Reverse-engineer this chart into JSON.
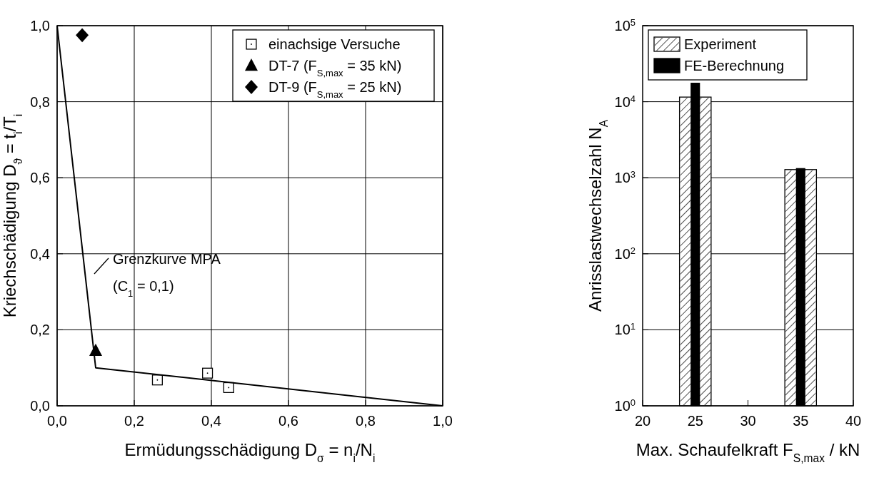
{
  "chart_data": [
    {
      "type": "scatter",
      "xlabel": "Ermüdungsschädigung D$_{σ}$ = n$_{i}$/N$_{i}$",
      "ylabel": "Kriechschädigung D$_{ϑ}$ = t$_{i}$/T$_{i}$",
      "xlim": [
        0,
        1
      ],
      "ylim": [
        0,
        1
      ],
      "xticks": [
        {
          "value": 0,
          "label": "0,0"
        },
        {
          "value": 0.2,
          "label": "0,2"
        },
        {
          "value": 0.4,
          "label": "0,4"
        },
        {
          "value": 0.6,
          "label": "0,6"
        },
        {
          "value": 0.8,
          "label": "0,8"
        },
        {
          "value": 1,
          "label": "1,0"
        }
      ],
      "yticks": [
        {
          "value": 0,
          "label": "0,0"
        },
        {
          "value": 0.2,
          "label": "0,2"
        },
        {
          "value": 0.4,
          "label": "0,4"
        },
        {
          "value": 0.6,
          "label": "0,6"
        },
        {
          "value": 0.8,
          "label": "0,8"
        },
        {
          "value": 1,
          "label": "1,0"
        }
      ],
      "grid": true,
      "legend": "top right",
      "series": [
        {
          "name": "einachsige Versuche",
          "marker": "square",
          "color": "#000000",
          "x": [
            0.26,
            0.39,
            0.445
          ],
          "values": [
            0.068,
            0.086,
            0.048
          ]
        },
        {
          "name": "DT-7 (F$_{S,max}$ = 35 kN)",
          "marker": "triangle",
          "color": "#000000",
          "x": [
            0.1
          ],
          "values": [
            0.145
          ]
        },
        {
          "name": "DT-9 (F$_{S,max}$ = 25 kN)",
          "marker": "diamond",
          "color": "#000000",
          "x": [
            0.065
          ],
          "values": [
            0.975
          ]
        },
        {
          "type": "line",
          "marker": "none",
          "color": "#000000",
          "x": [
            0,
            0.1,
            1
          ],
          "values": [
            1,
            0.1,
            0
          ]
        }
      ],
      "annotations": [
        "Grenzkurve MPA",
        "(C$_{1}$ = 0,1)"
      ]
    },
    {
      "type": "bar",
      "xlabel": "Max. Schaufelkraft F$_{S,max}$ / kN",
      "ylabel": "Anrisslastwechselzahl N$_{A}$",
      "x": [
        25,
        35
      ],
      "xlim": [
        20,
        40
      ],
      "xticks": [
        20,
        25,
        30,
        35,
        40
      ],
      "log": true,
      "ylim": [
        1,
        100000
      ],
      "yticks": [
        {
          "value": 1,
          "label": "10$^{0}$"
        },
        {
          "value": 10,
          "label": "10$^{1}$"
        },
        {
          "value": 100,
          "label": "10$^{2}$"
        },
        {
          "value": 1000,
          "label": "10$^{3}$"
        },
        {
          "value": 10000,
          "label": "10$^{4}$"
        },
        {
          "value": 100000,
          "label": "10$^{5}$"
        }
      ],
      "grid": "y",
      "legend": "top left",
      "series": [
        {
          "name": "Experiment",
          "color": "#ffffff",
          "values": [
            11500,
            1280
          ]
        },
        {
          "name": "FE-Berechnung",
          "color": "#000000",
          "values": [
            17500,
            1320
          ]
        }
      ]
    }
  ]
}
